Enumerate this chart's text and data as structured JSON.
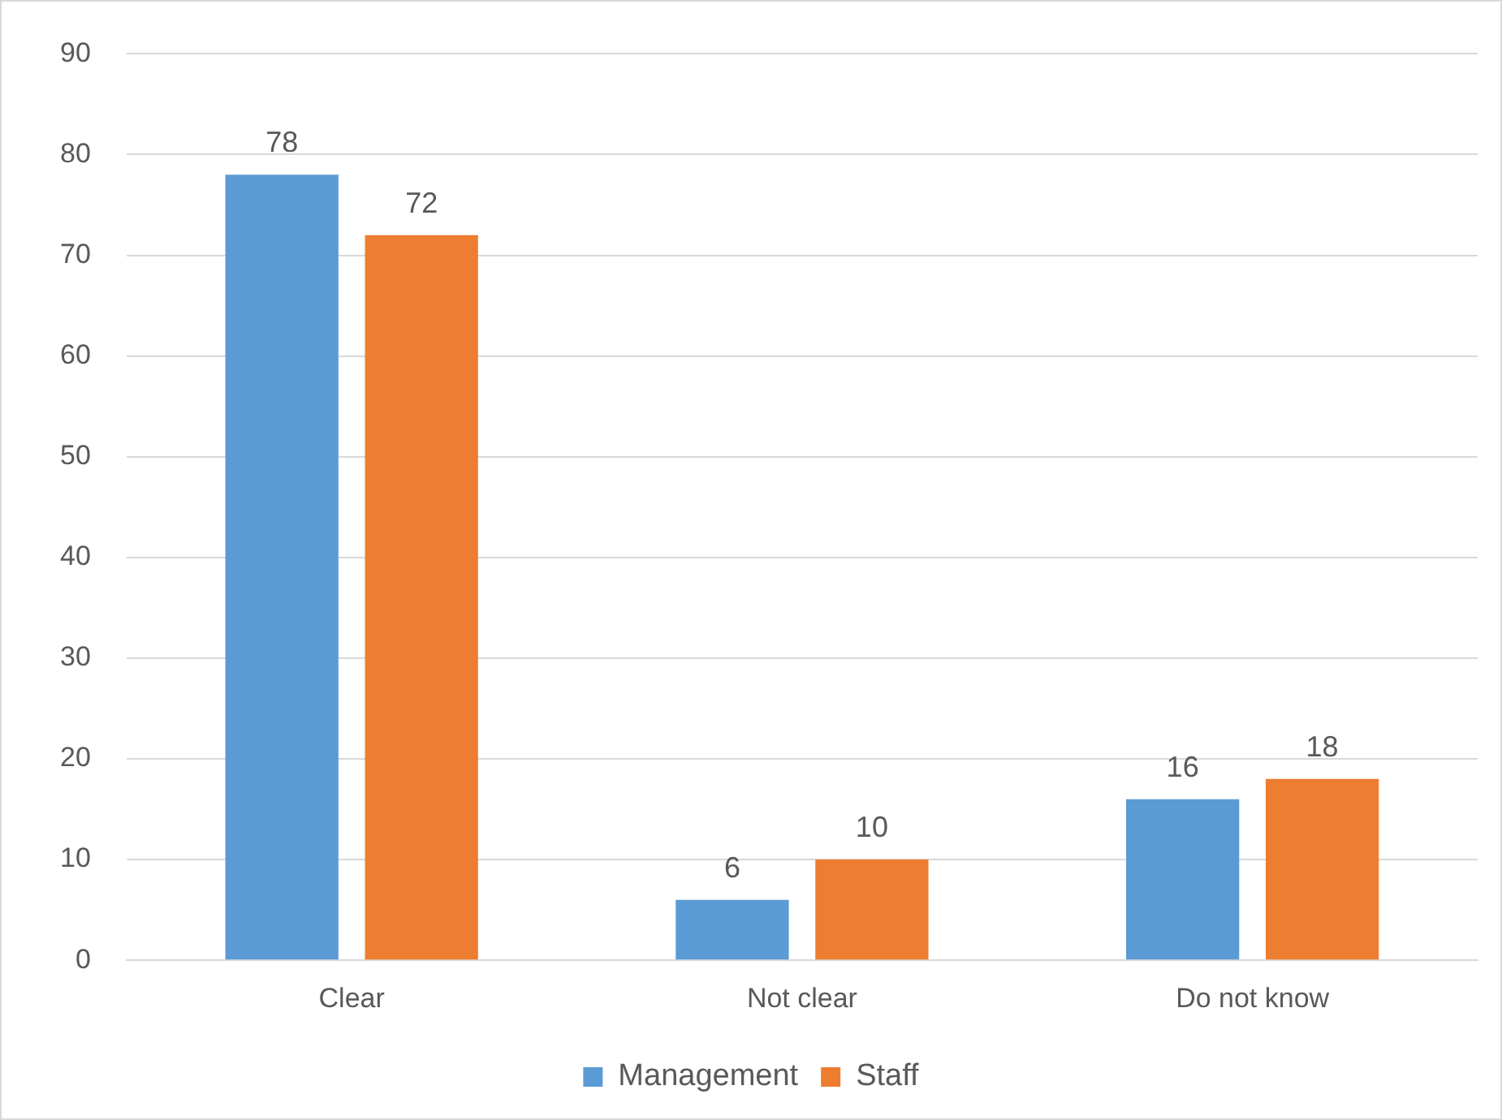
{
  "chart_data": {
    "type": "bar",
    "categories": [
      "Clear",
      "Not clear",
      "Do not know"
    ],
    "series": [
      {
        "name": "Management",
        "color": "#5b9bd5",
        "values": [
          78,
          6,
          16
        ]
      },
      {
        "name": "Staff",
        "color": "#ed7d31",
        "values": [
          72,
          10,
          18
        ]
      }
    ],
    "ylim": [
      0,
      90
    ],
    "yticks": [
      0,
      10,
      20,
      30,
      40,
      50,
      60,
      70,
      80,
      90
    ],
    "grid": "y",
    "legend": "bottom",
    "data_labels": true
  }
}
